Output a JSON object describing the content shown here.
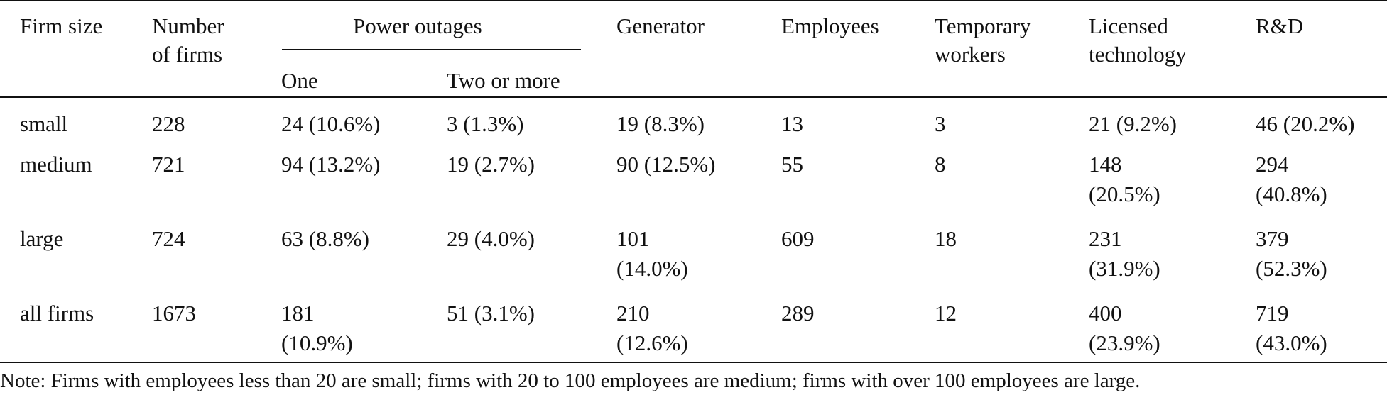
{
  "table": {
    "header": {
      "firm_size": "Firm size",
      "number_of_firms_line1": "Number",
      "number_of_firms_line2": "of firms",
      "power_outages": "Power outages",
      "one": "One",
      "two_or_more": "Two or more",
      "generator": "Generator",
      "employees": "Employees",
      "temporary_workers_line1": "Temporary",
      "temporary_workers_line2": "workers",
      "licensed_technology_line1": "Licensed",
      "licensed_technology_line2": "technology",
      "rd": "R&D"
    },
    "rows": [
      {
        "firm_size": "small",
        "number_of_firms": "228",
        "outages_one": "24 (10.6%)",
        "outages_two_or_more": "3 (1.3%)",
        "generator": "19 (8.3%)",
        "employees": "13",
        "temporary_workers": "3",
        "licensed_technology": "21 (9.2%)",
        "rd": "46 (20.2%)"
      },
      {
        "firm_size": "medium",
        "number_of_firms": "721",
        "outages_one": "94 (13.2%)",
        "outages_two_or_more": "19 (2.7%)",
        "generator": "90 (12.5%)",
        "employees": "55",
        "temporary_workers": "8",
        "licensed_technology_line1": "148",
        "licensed_technology_line2": "(20.5%)",
        "rd_line1": "294",
        "rd_line2": "(40.8%)"
      },
      {
        "firm_size": "large",
        "number_of_firms": "724",
        "outages_one": "63 (8.8%)",
        "outages_two_or_more": "29 (4.0%)",
        "generator_line1": "101",
        "generator_line2": "(14.0%)",
        "employees": "609",
        "temporary_workers": "18",
        "licensed_technology_line1": "231",
        "licensed_technology_line2": "(31.9%)",
        "rd_line1": "379",
        "rd_line2": "(52.3%)"
      },
      {
        "firm_size": "all firms",
        "number_of_firms": "1673",
        "outages_one_line1": "181",
        "outages_one_line2": "(10.9%)",
        "outages_two_or_more": "51 (3.1%)",
        "generator_line1": "210",
        "generator_line2": "(12.6%)",
        "employees": "289",
        "temporary_workers": "12",
        "licensed_technology_line1": "400",
        "licensed_technology_line2": "(23.9%)",
        "rd_line1": "719",
        "rd_line2": "(43.0%)"
      }
    ]
  },
  "note": "Note: Firms with employees less than 20 are small; firms with 20 to 100 employees are medium; firms with over 100 employees are large."
}
